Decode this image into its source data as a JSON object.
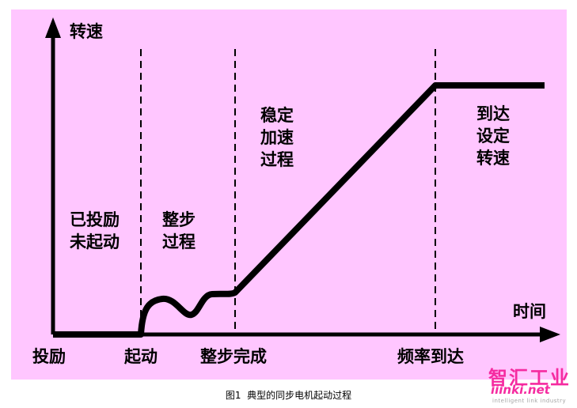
{
  "axes": {
    "y_label": "转速",
    "x_label": "时间"
  },
  "x_markers": [
    "投励",
    "起动",
    "整步完成",
    "频率到达"
  ],
  "phases": {
    "pre": "已投励\n未起动",
    "sync": "整步\n过程",
    "accel": "稳定\n加速\n过程",
    "reach": "到达\n设定\n转速"
  },
  "caption": "图1  典型的同步电机起动过程",
  "watermark": {
    "main": "智汇工业",
    "url": "iiinki.net",
    "sub": "intelligent link industry"
  },
  "colors": {
    "panel_bg": "#ffc6ff",
    "ink": "#000000",
    "watermark": "#f52ba0"
  }
}
